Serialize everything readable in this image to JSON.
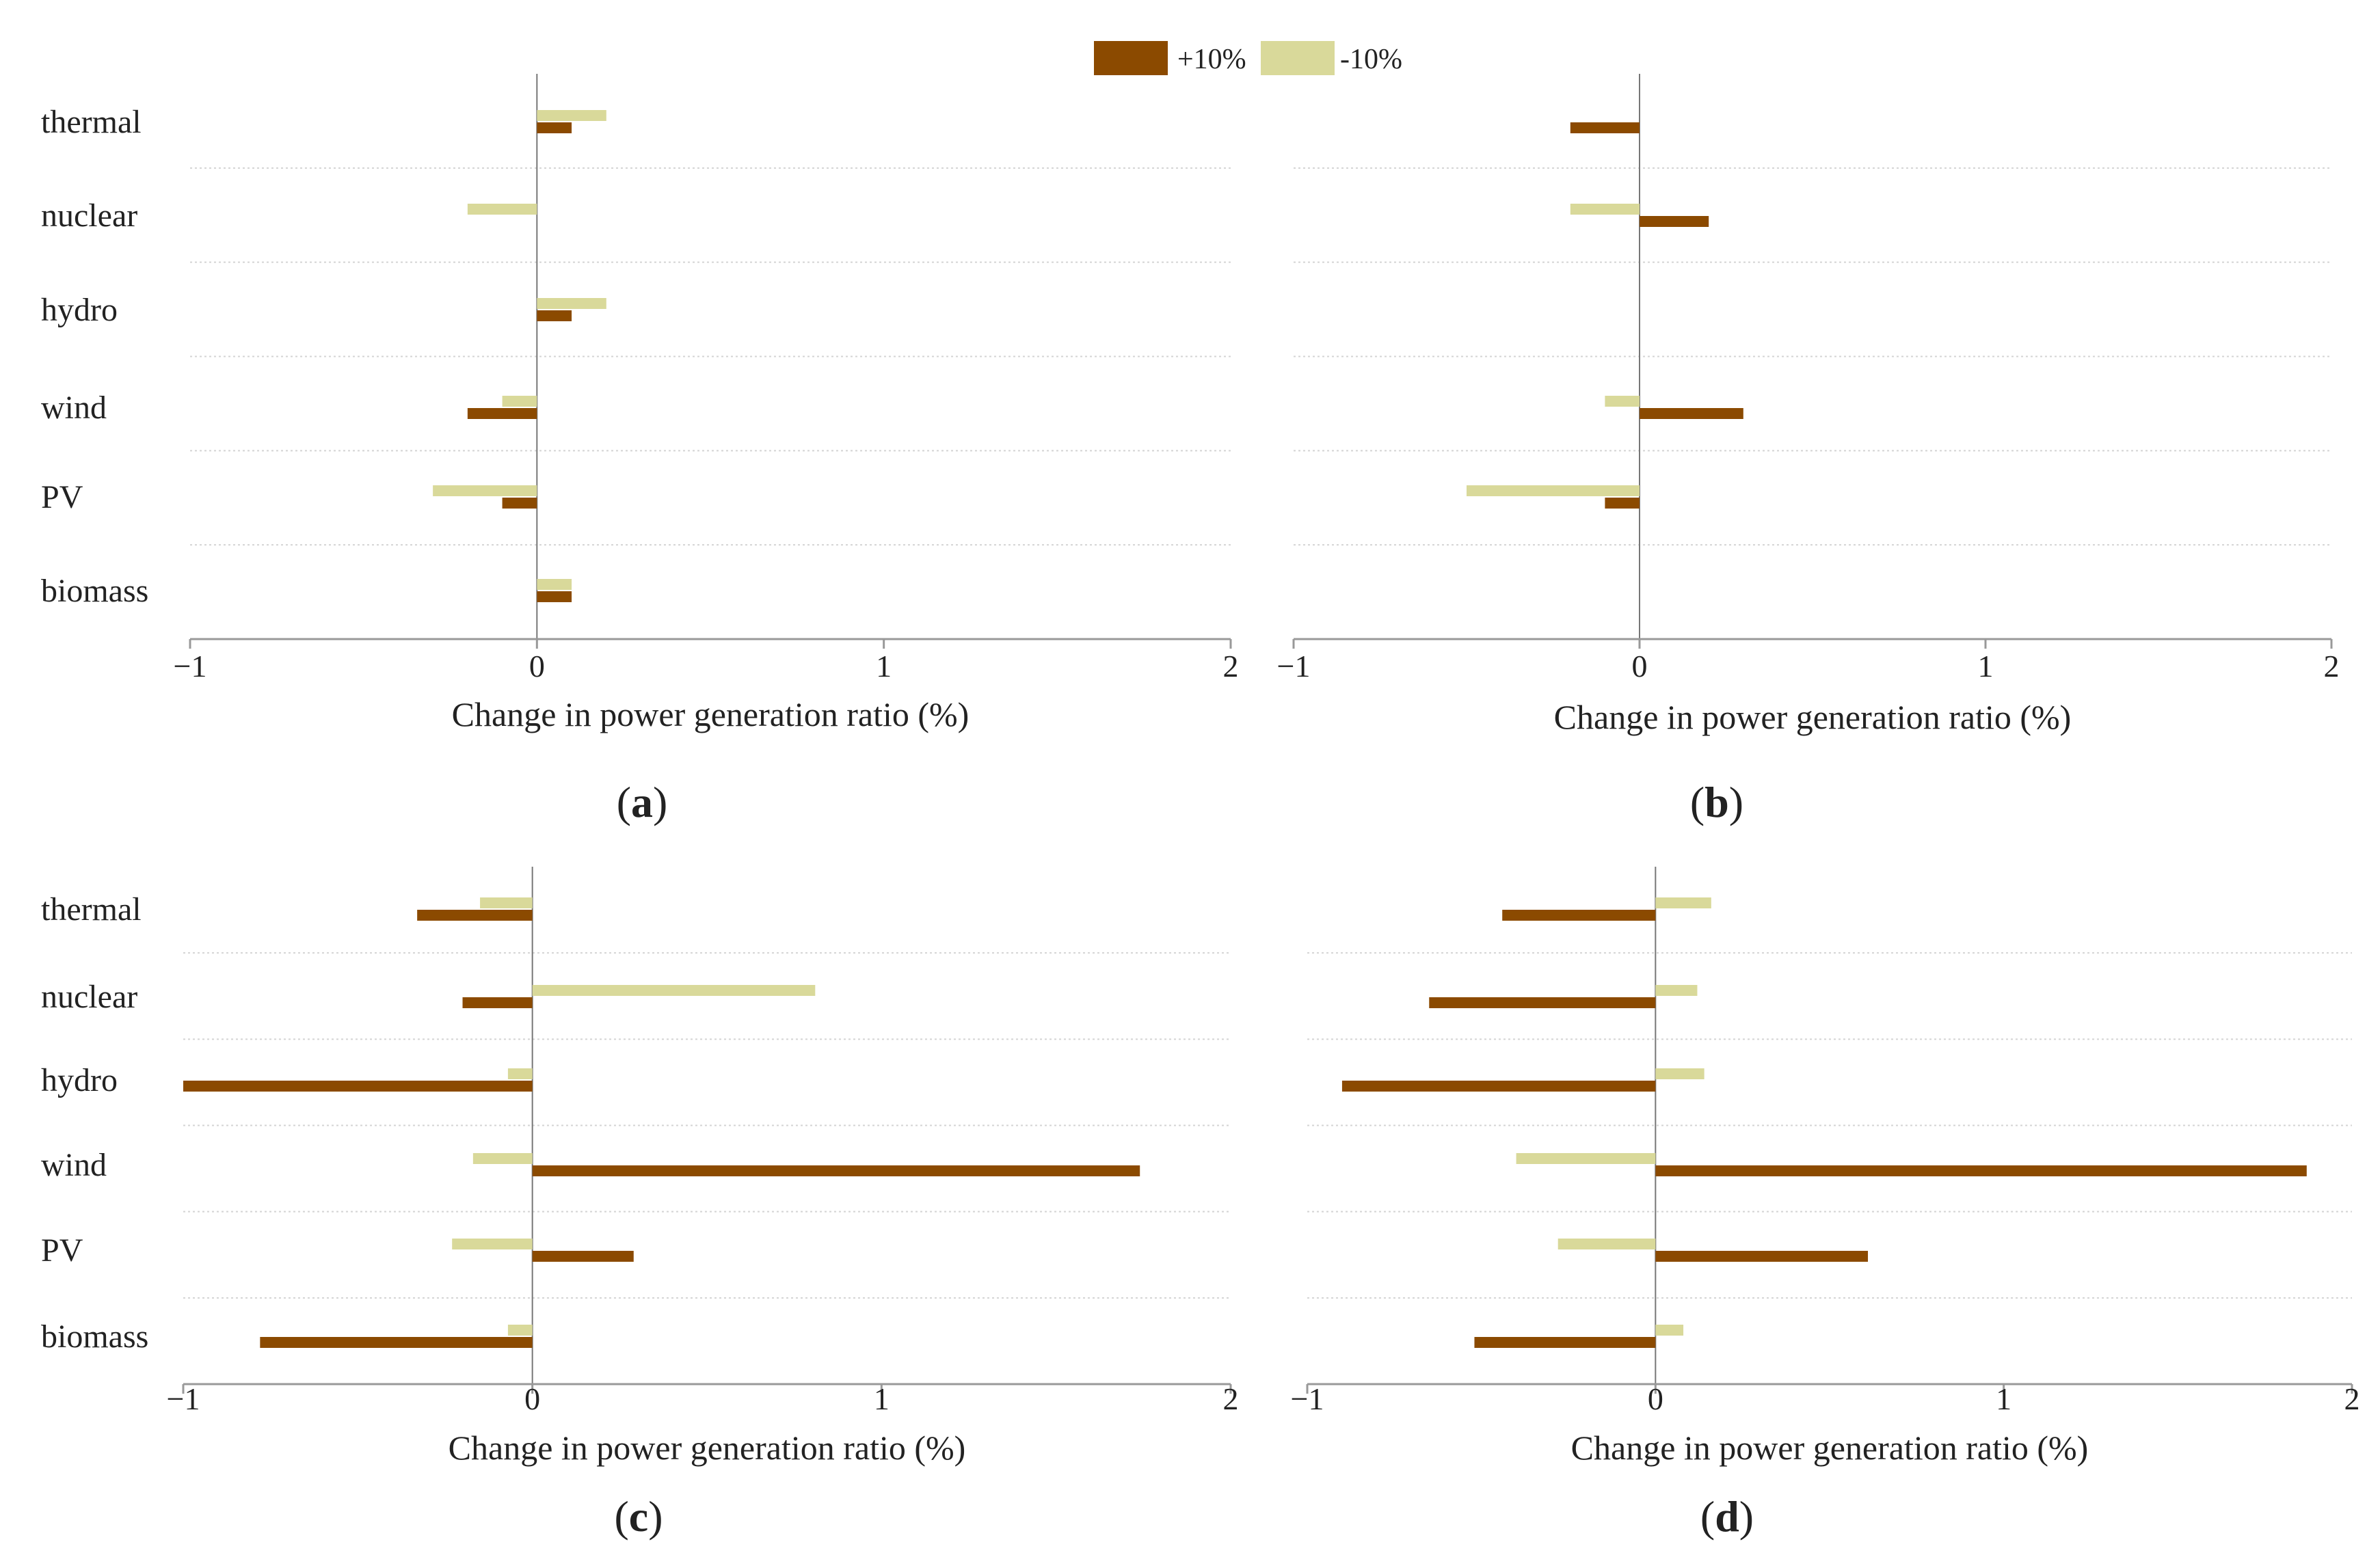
{
  "legend": {
    "items": [
      {
        "label": "+10%",
        "color": "#8B4A00"
      },
      {
        "label": "-10%",
        "color": "#D9D99A"
      }
    ]
  },
  "chart_data": [
    {
      "panel": "a",
      "type": "bar",
      "orientation": "horizontal",
      "categories": [
        "thermal",
        "nuclear",
        "hydro",
        "wind",
        "PV",
        "biomass"
      ],
      "series": [
        {
          "name": "+10%",
          "values": [
            0.1,
            0.0,
            0.1,
            -0.2,
            -0.1,
            0.1
          ]
        },
        {
          "name": "-10%",
          "values": [
            0.2,
            -0.2,
            0.2,
            -0.1,
            -0.3,
            0.1
          ]
        }
      ],
      "xlabel": "Change in power generation ratio (%)",
      "xlim": [
        -1,
        2
      ],
      "xticks": [
        -1,
        0,
        1,
        2
      ],
      "xtick_labels": [
        "−1",
        "0",
        "1",
        "2"
      ]
    },
    {
      "panel": "b",
      "type": "bar",
      "orientation": "horizontal",
      "categories": [
        "thermal",
        "nuclear",
        "hydro",
        "wind",
        "PV",
        "biomass"
      ],
      "series": [
        {
          "name": "+10%",
          "values": [
            -0.2,
            0.2,
            0.0,
            0.3,
            -0.1,
            0.0
          ]
        },
        {
          "name": "-10%",
          "values": [
            0.0,
            -0.2,
            0.0,
            -0.1,
            -0.5,
            0.0
          ]
        }
      ],
      "xlabel": "Change in power generation ratio (%)",
      "xlim": [
        -1,
        2
      ],
      "xticks": [
        -1,
        0,
        1,
        2
      ],
      "xtick_labels": [
        "−1",
        "0",
        "1",
        "2"
      ]
    },
    {
      "panel": "c",
      "type": "bar",
      "orientation": "horizontal",
      "categories": [
        "thermal",
        "nuclear",
        "hydro",
        "wind",
        "PV",
        "biomass"
      ],
      "series": [
        {
          "name": "+10%",
          "values": [
            -0.33,
            -0.2,
            -1.0,
            1.74,
            0.29,
            -0.78
          ]
        },
        {
          "name": "-10%",
          "values": [
            -0.15,
            0.81,
            -0.07,
            -0.17,
            -0.23,
            -0.07
          ]
        }
      ],
      "xlabel": "Change in power generation ratio (%)",
      "xlim": [
        -1,
        2
      ],
      "xticks": [
        -1,
        0,
        1,
        2
      ],
      "xtick_labels": [
        "−1",
        "0",
        "1",
        "2"
      ]
    },
    {
      "panel": "d",
      "type": "bar",
      "orientation": "horizontal",
      "categories": [
        "thermal",
        "nuclear",
        "hydro",
        "wind",
        "PV",
        "biomass"
      ],
      "series": [
        {
          "name": "+10%",
          "values": [
            -0.44,
            -0.65,
            -0.9,
            1.87,
            0.61,
            -0.52
          ]
        },
        {
          "name": "-10%",
          "values": [
            0.16,
            0.12,
            0.14,
            -0.4,
            -0.28,
            0.08
          ]
        }
      ],
      "xlabel": "Change in power generation ratio (%)",
      "xlim": [
        -1,
        2
      ],
      "xticks": [
        -1,
        0,
        1,
        2
      ],
      "xtick_labels": [
        "−1",
        "0",
        "1",
        "2"
      ]
    }
  ],
  "panel_labels": [
    "a",
    "b",
    "c",
    "d"
  ]
}
